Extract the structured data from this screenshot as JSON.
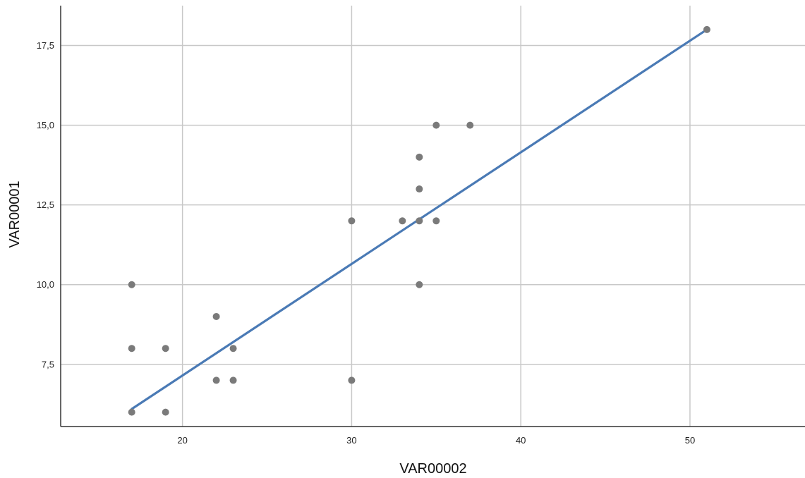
{
  "chart_data": {
    "type": "scatter",
    "title": "",
    "xlabel": "VAR00002",
    "ylabel": "VAR00001",
    "xlim": [
      12.8,
      56.8
    ],
    "ylim": [
      5.55,
      18.75
    ],
    "x_ticks": [
      20,
      30,
      40,
      50
    ],
    "y_ticks": [
      7.5,
      10.0,
      12.5,
      15.0,
      17.5
    ],
    "x_tick_labels": [
      "20",
      "30",
      "40",
      "50"
    ],
    "y_tick_labels": [
      "7,5",
      "10,0",
      "12,5",
      "15,0",
      "17,5"
    ],
    "grid": true,
    "legend": "none",
    "colors": {
      "points": "#7a7a7a",
      "fit_line": "#4a7ab5"
    },
    "points": [
      {
        "x": 17,
        "y": 10
      },
      {
        "x": 17,
        "y": 8
      },
      {
        "x": 17,
        "y": 6
      },
      {
        "x": 19,
        "y": 8
      },
      {
        "x": 19,
        "y": 6
      },
      {
        "x": 22,
        "y": 9
      },
      {
        "x": 22,
        "y": 7
      },
      {
        "x": 23,
        "y": 8
      },
      {
        "x": 23,
        "y": 7
      },
      {
        "x": 30,
        "y": 12
      },
      {
        "x": 30,
        "y": 7
      },
      {
        "x": 33,
        "y": 12
      },
      {
        "x": 34,
        "y": 14
      },
      {
        "x": 34,
        "y": 13
      },
      {
        "x": 34,
        "y": 12
      },
      {
        "x": 34,
        "y": 10
      },
      {
        "x": 35,
        "y": 15
      },
      {
        "x": 35,
        "y": 12
      },
      {
        "x": 37,
        "y": 15
      },
      {
        "x": 51,
        "y": 18
      }
    ],
    "fit_line": {
      "x": [
        17,
        51
      ],
      "y": [
        6.1,
        18.0
      ]
    }
  }
}
